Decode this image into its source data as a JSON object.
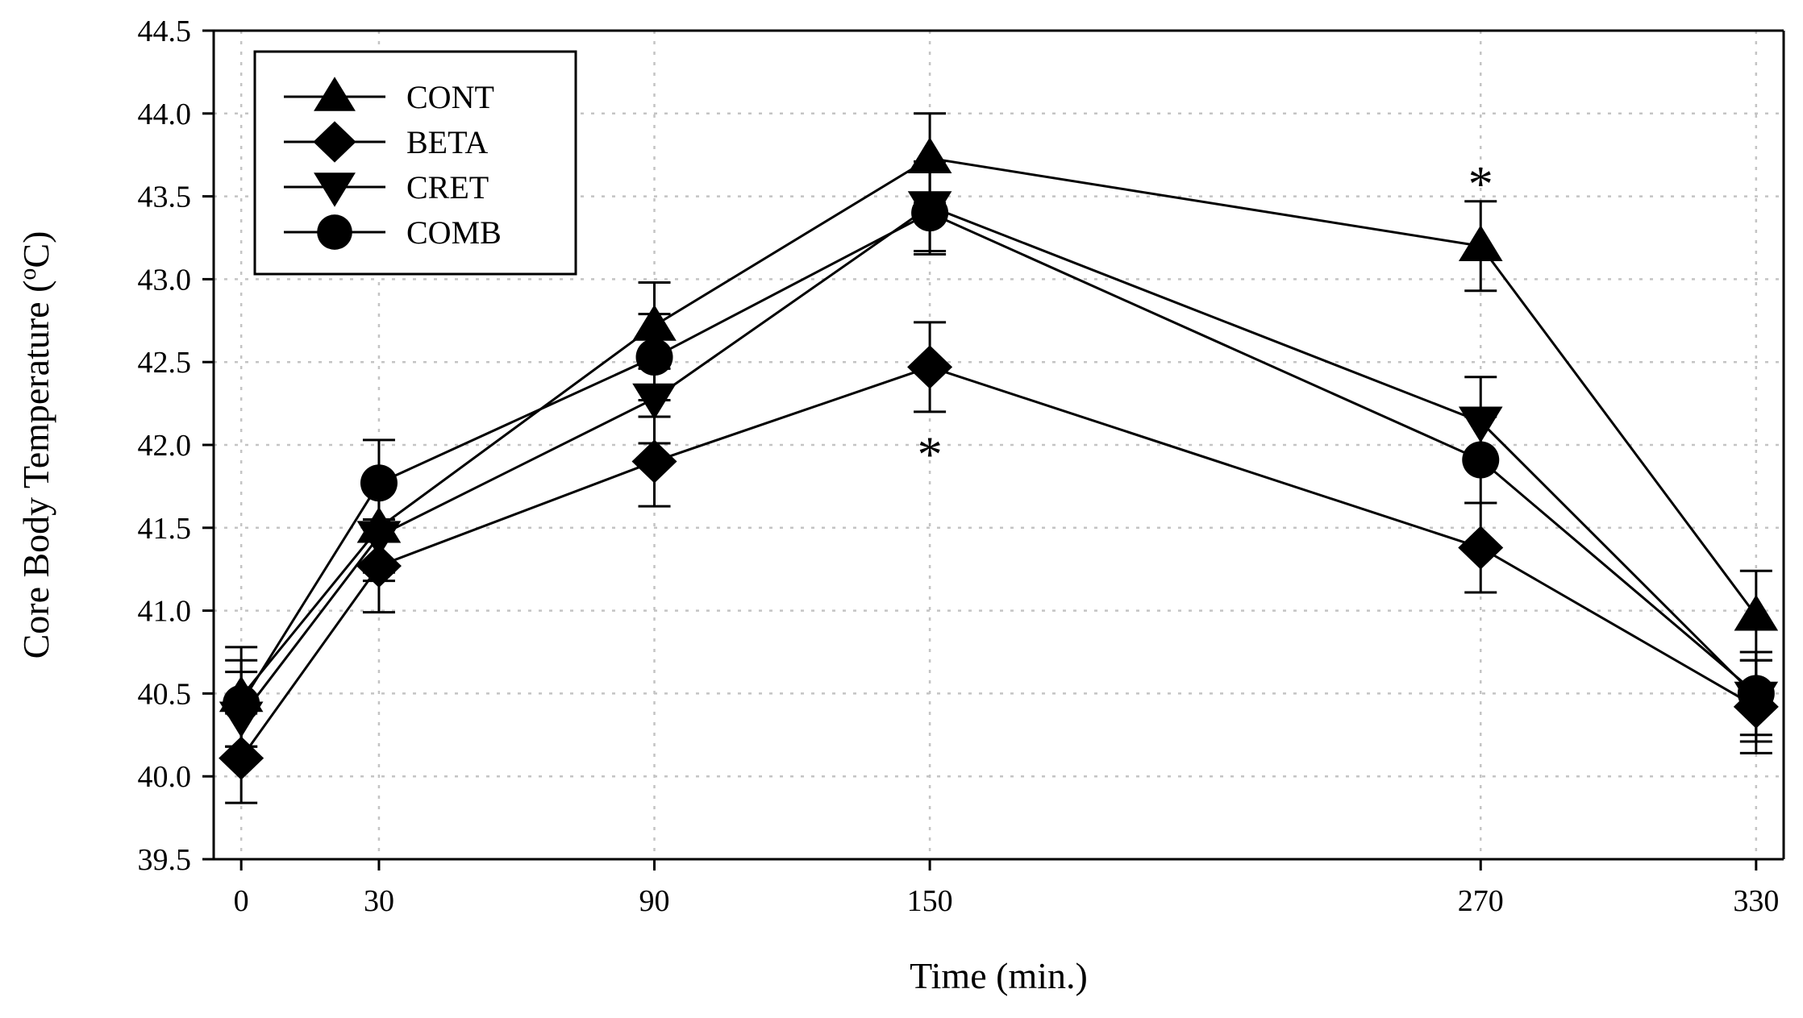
{
  "chart_data": {
    "type": "line",
    "title": "",
    "xlabel": "Time (min.)",
    "ylabel_main": "Core Body Temperature (",
    "ylabel_sup": "o",
    "ylabel_end": "C)",
    "x": [
      0,
      30,
      90,
      150,
      270,
      330
    ],
    "xticks": [
      "0",
      "30",
      "90",
      "150",
      "270",
      "330"
    ],
    "xlim": [
      -6,
      336
    ],
    "ylim": [
      39.5,
      44.5
    ],
    "yticks": [
      "39.5",
      "40.0",
      "40.5",
      "41.0",
      "41.5",
      "42.0",
      "42.5",
      "43.0",
      "43.5",
      "44.0",
      "44.5"
    ],
    "grid": true,
    "legend_position": "top-left",
    "series": [
      {
        "name": "CONT",
        "marker": "triangle-up",
        "values": [
          40.48,
          41.5,
          42.72,
          43.73,
          43.2,
          40.97
        ],
        "errors": [
          0.3,
          0.27,
          0.26,
          0.27,
          0.27,
          0.27
        ]
      },
      {
        "name": "BETA",
        "marker": "diamond",
        "values": [
          40.11,
          41.27,
          41.9,
          42.47,
          41.38,
          40.42
        ],
        "errors": [
          0.27,
          0.28,
          0.27,
          0.27,
          0.27,
          0.28
        ]
      },
      {
        "name": "CRET",
        "marker": "triangle-down",
        "values": [
          40.36,
          41.45,
          42.28,
          43.44,
          42.14,
          40.48
        ],
        "errors": [
          0.27,
          0.27,
          0.27,
          0.27,
          0.27,
          0.27
        ]
      },
      {
        "name": "COMB",
        "marker": "circle",
        "values": [
          40.44,
          41.77,
          42.53,
          43.4,
          41.91,
          40.5
        ],
        "errors": [
          0.26,
          0.26,
          0.26,
          0.25,
          0.26,
          0.25
        ]
      }
    ],
    "annotations": [
      {
        "text": "*",
        "x": 150,
        "y": 41.95
      },
      {
        "text": "*",
        "x": 270,
        "y": 43.58
      }
    ]
  }
}
